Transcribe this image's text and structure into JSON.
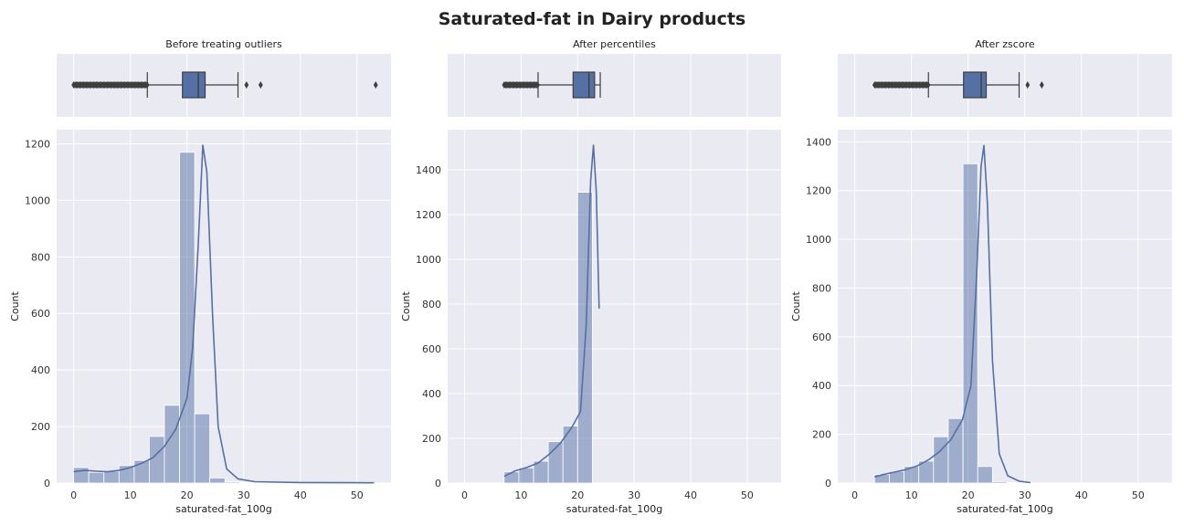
{
  "figure": {
    "title": "Saturated-fat in Dairy products"
  },
  "chart_data": [
    {
      "type": "box",
      "title": "Before treating outliers",
      "xlim": [
        -3,
        56
      ],
      "xticks": [
        0,
        10,
        20,
        30,
        40,
        50
      ],
      "whisker_low": 13,
      "q1": 19.2,
      "median": 22.0,
      "q3": 23.2,
      "whisker_high": 29.0,
      "outliers_low_range": [
        0,
        13
      ],
      "outliers_high": [
        30.5,
        33.0,
        53.3
      ],
      "color": "#5470a5",
      "grid": true
    },
    {
      "type": "bar",
      "title": "",
      "xlabel": "saturated-fat_100g",
      "ylabel": "Count",
      "xlim": [
        -3,
        56
      ],
      "ylim": [
        0,
        1250
      ],
      "xticks": [
        0,
        10,
        20,
        30,
        40,
        50
      ],
      "yticks": [
        0,
        200,
        400,
        600,
        800,
        1000,
        1200
      ],
      "bin_width": 2.67,
      "bin_start": 0,
      "values": [
        55,
        38,
        42,
        62,
        80,
        165,
        275,
        1170,
        245,
        18,
        4,
        2,
        1,
        1,
        1,
        1,
        1,
        1,
        1,
        1
      ],
      "kde": [
        [
          0,
          40
        ],
        [
          2,
          45
        ],
        [
          4,
          42
        ],
        [
          6,
          40
        ],
        [
          8,
          45
        ],
        [
          10,
          55
        ],
        [
          12,
          70
        ],
        [
          14,
          90
        ],
        [
          16,
          130
        ],
        [
          18,
          190
        ],
        [
          20,
          300
        ],
        [
          21,
          480
        ],
        [
          22,
          850
        ],
        [
          22.8,
          1195
        ],
        [
          23.5,
          1100
        ],
        [
          24.5,
          600
        ],
        [
          25.5,
          200
        ],
        [
          27,
          50
        ],
        [
          29,
          15
        ],
        [
          32,
          5
        ],
        [
          40,
          2
        ],
        [
          53,
          1
        ]
      ],
      "color": "#5470a5",
      "grid": true
    },
    {
      "type": "box",
      "title": "After percentiles",
      "xlim": [
        -3,
        56
      ],
      "xticks": [
        0,
        10,
        20,
        30,
        40,
        50
      ],
      "whisker_low": 13,
      "q1": 19.2,
      "median": 22.0,
      "q3": 23.0,
      "whisker_high": 24.0,
      "outliers_low_range": [
        7,
        13
      ],
      "outliers_high": [],
      "color": "#5470a5",
      "grid": true
    },
    {
      "type": "bar",
      "title": "",
      "xlabel": "saturated-fat_100g",
      "ylabel": "Count",
      "xlim": [
        -3,
        56
      ],
      "ylim": [
        0,
        1580
      ],
      "xticks": [
        0,
        10,
        20,
        30,
        40,
        50
      ],
      "yticks": [
        0,
        200,
        400,
        600,
        800,
        1000,
        1200,
        1400
      ],
      "bin_width": 2.6,
      "bin_start": 7,
      "values": [
        50,
        68,
        98,
        185,
        255,
        1300
      ],
      "kde": [
        [
          7,
          30
        ],
        [
          9,
          55
        ],
        [
          11,
          70
        ],
        [
          13,
          90
        ],
        [
          15,
          130
        ],
        [
          17,
          180
        ],
        [
          19,
          250
        ],
        [
          20.5,
          320
        ],
        [
          21.5,
          700
        ],
        [
          22.3,
          1350
        ],
        [
          22.8,
          1510
        ],
        [
          23.3,
          1300
        ],
        [
          23.8,
          780
        ]
      ],
      "color": "#5470a5",
      "grid": true
    },
    {
      "type": "box",
      "title": "After zscore",
      "xlim": [
        -3,
        56
      ],
      "xticks": [
        0,
        10,
        20,
        30,
        40,
        50
      ],
      "whisker_low": 13,
      "q1": 19.2,
      "median": 22.3,
      "q3": 23.2,
      "whisker_high": 29.0,
      "outliers_low_range": [
        3.5,
        13
      ],
      "outliers_high": [
        30.5,
        33.0
      ],
      "color": "#5470a5",
      "grid": true
    },
    {
      "type": "bar",
      "title": "",
      "xlabel": "saturated-fat_100g",
      "ylabel": "Count",
      "xlim": [
        -3,
        56
      ],
      "ylim": [
        0,
        1450
      ],
      "xticks": [
        0,
        10,
        20,
        30,
        40,
        50
      ],
      "yticks": [
        0,
        200,
        400,
        600,
        800,
        1000,
        1200,
        1400
      ],
      "bin_width": 2.6,
      "bin_start": 3.5,
      "values": [
        35,
        48,
        68,
        90,
        190,
        265,
        1310,
        68,
        6,
        2
      ],
      "kde": [
        [
          3.5,
          25
        ],
        [
          5,
          35
        ],
        [
          7,
          45
        ],
        [
          9,
          55
        ],
        [
          11,
          70
        ],
        [
          13,
          95
        ],
        [
          15,
          130
        ],
        [
          17,
          180
        ],
        [
          19,
          260
        ],
        [
          20.5,
          400
        ],
        [
          21.5,
          850
        ],
        [
          22.3,
          1300
        ],
        [
          22.8,
          1385
        ],
        [
          23.4,
          1150
        ],
        [
          24.3,
          500
        ],
        [
          25.5,
          120
        ],
        [
          27,
          30
        ],
        [
          29,
          8
        ],
        [
          31,
          2
        ]
      ],
      "color": "#5470a5",
      "grid": true
    }
  ]
}
